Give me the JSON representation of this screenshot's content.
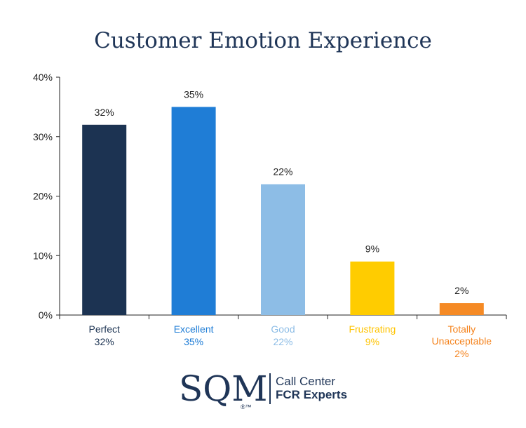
{
  "chart_data": {
    "type": "bar",
    "title": "Customer Emotion Experience",
    "categories": [
      "Perfect",
      "Excellent",
      "Good",
      "Frustrating",
      "Totally Unacceptable"
    ],
    "category_lines": [
      [
        "Perfect"
      ],
      [
        "Excellent"
      ],
      [
        "Good"
      ],
      [
        "Frustrating"
      ],
      [
        "Totally",
        "Unacceptable"
      ]
    ],
    "values": [
      32,
      35,
      22,
      9,
      2
    ],
    "value_labels": [
      "32%",
      "35%",
      "22%",
      "9%",
      "2%"
    ],
    "bar_colors": [
      "#1c3352",
      "#1f7dd6",
      "#8dbde6",
      "#ffcc00",
      "#f58a25"
    ],
    "label_colors": [
      "#1c3352",
      "#1f7dd6",
      "#8dbde6",
      "#ffc400",
      "#f5841f"
    ],
    "ylim": [
      0,
      40
    ],
    "yticks": [
      0,
      10,
      20,
      30,
      40
    ],
    "ytick_labels": [
      "0%",
      "10%",
      "20%",
      "30%",
      "40%"
    ],
    "xlabel": "",
    "ylabel": "",
    "grid": false
  },
  "logo": {
    "letters": "SQM",
    "mark": "®™",
    "tagline_line1": "Call Center",
    "tagline_line2": "FCR Experts"
  }
}
